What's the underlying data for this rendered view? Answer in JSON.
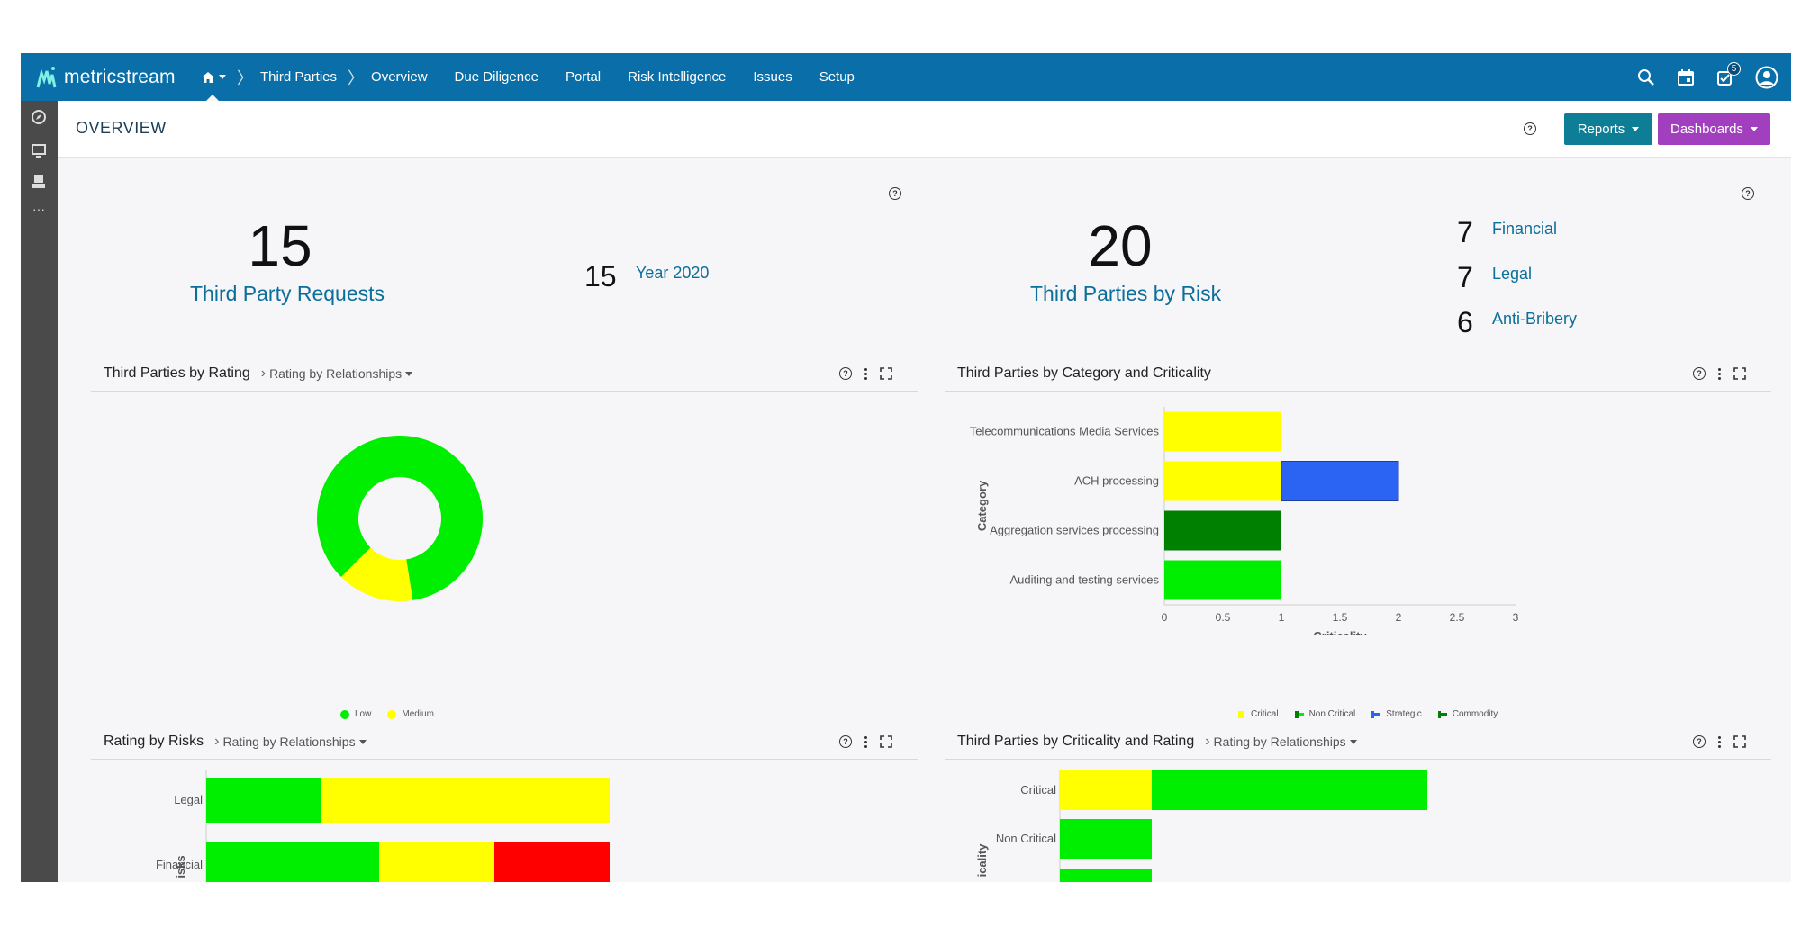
{
  "app": {
    "logo_text": "metricstream",
    "nav": [
      "Third Parties",
      "Overview",
      "Due Diligence",
      "Portal",
      "Risk Intelligence",
      "Issues",
      "Setup"
    ],
    "notification_count": "5"
  },
  "header": {
    "title": "OVERVIEW",
    "reports_label": "Reports",
    "dashboards_label": "Dashboards"
  },
  "kpis": {
    "requests_value": "15",
    "requests_label": "Third Party Requests",
    "year_value": "15",
    "year_label": "Year 2020",
    "risk_value": "20",
    "risk_label": "Third Parties by Risk",
    "risk_breakdown": [
      {
        "value": "7",
        "label": "Financial"
      },
      {
        "value": "7",
        "label": "Legal"
      },
      {
        "value": "6",
        "label": "Anti-Bribery"
      }
    ]
  },
  "panels": {
    "rating": {
      "title": "Third Parties by Rating",
      "sub": "Rating by Relationships"
    },
    "category": {
      "title": "Third Parties by Category and Criticality"
    },
    "risks": {
      "title": "Rating by Risks",
      "sub": "Rating by Relationships"
    },
    "crit_rating": {
      "title": "Third Parties by Criticality and Rating",
      "sub": "Rating by Relationships"
    }
  },
  "colors": {
    "low": "#00ee00",
    "medium": "#ffff00",
    "high": "#ff0000",
    "critical": "#ffff00",
    "non_critical": "#00ee00",
    "strategic": "#2b63f2",
    "commodity": "#008000",
    "brand": "#0a6fa8"
  },
  "chart_data": [
    {
      "type": "pie",
      "categories": [
        "Low",
        "Medium"
      ],
      "values": [
        85,
        15
      ],
      "legend": "bottom"
    },
    {
      "type": "bar",
      "orientation": "horizontal",
      "stacked": true,
      "categories": [
        "Telecommunications Media Services",
        "ACH processing",
        "Aggregation services processing",
        "Auditing and testing services"
      ],
      "series": [
        {
          "name": "Critical",
          "values": [
            1,
            1,
            0,
            0
          ]
        },
        {
          "name": "Non Critical",
          "values": [
            0,
            0,
            0,
            1
          ]
        },
        {
          "name": "Strategic",
          "values": [
            0,
            1,
            0,
            0
          ]
        },
        {
          "name": "Commodity",
          "values": [
            0,
            0,
            1,
            0
          ]
        }
      ],
      "xlabel": "Criticality",
      "ylabel": "Category",
      "xlim": [
        0,
        3
      ],
      "xticks": [
        "0",
        "0.5",
        "1",
        "1.5",
        "2",
        "2.5",
        "3"
      ],
      "legend": "bottom"
    },
    {
      "type": "bar",
      "orientation": "horizontal",
      "stacked": true,
      "categories": [
        "Legal",
        "Financial"
      ],
      "series": [
        {
          "values": [
            2,
            3
          ]
        },
        {
          "values": [
            5,
            2
          ]
        },
        {
          "values": [
            0,
            2
          ]
        }
      ],
      "ylabel": "isks"
    },
    {
      "type": "bar",
      "orientation": "horizontal",
      "stacked": true,
      "categories": [
        "Critical",
        "Non Critical"
      ],
      "series": [
        {
          "values": [
            1,
            0
          ]
        },
        {
          "values": [
            3,
            1
          ]
        }
      ],
      "ylabel": "icality"
    }
  ]
}
